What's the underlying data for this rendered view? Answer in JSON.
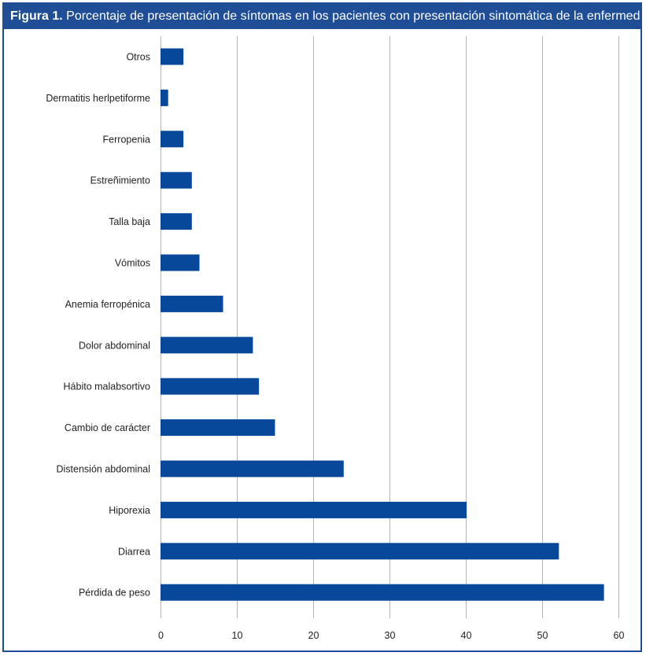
{
  "figure": {
    "label": "Figura 1.",
    "caption": "Porcentaje de presentación de síntomas en los pacientes con presentación sintomática de la enfermedad"
  },
  "colors": {
    "frame": "#1f4e96",
    "bar": "#08489a",
    "grid": "#b4b4b4"
  },
  "chart_data": {
    "type": "bar",
    "orientation": "horizontal",
    "categories": [
      "Otros",
      "Dermatitis herlpetiforme",
      "Ferropenia",
      "Estreñimiento",
      "Talla baja",
      "Vómitos",
      "Anemia ferropénica",
      "Dolor abdominal",
      "Hábito malabsortivo",
      "Cambio de carácter",
      "Distensión abdominal",
      "Hiporexia",
      "Diarrea",
      "Pérdida de peso"
    ],
    "values": [
      3,
      1,
      3,
      4.1,
      4.1,
      5.1,
      8.2,
      12.1,
      12.9,
      15,
      24,
      40.1,
      52.2,
      58.1
    ],
    "xlim": [
      0,
      60
    ],
    "xticks": [
      0,
      10,
      20,
      30,
      40,
      50,
      60
    ],
    "grid": "vertical",
    "legend": "none"
  }
}
